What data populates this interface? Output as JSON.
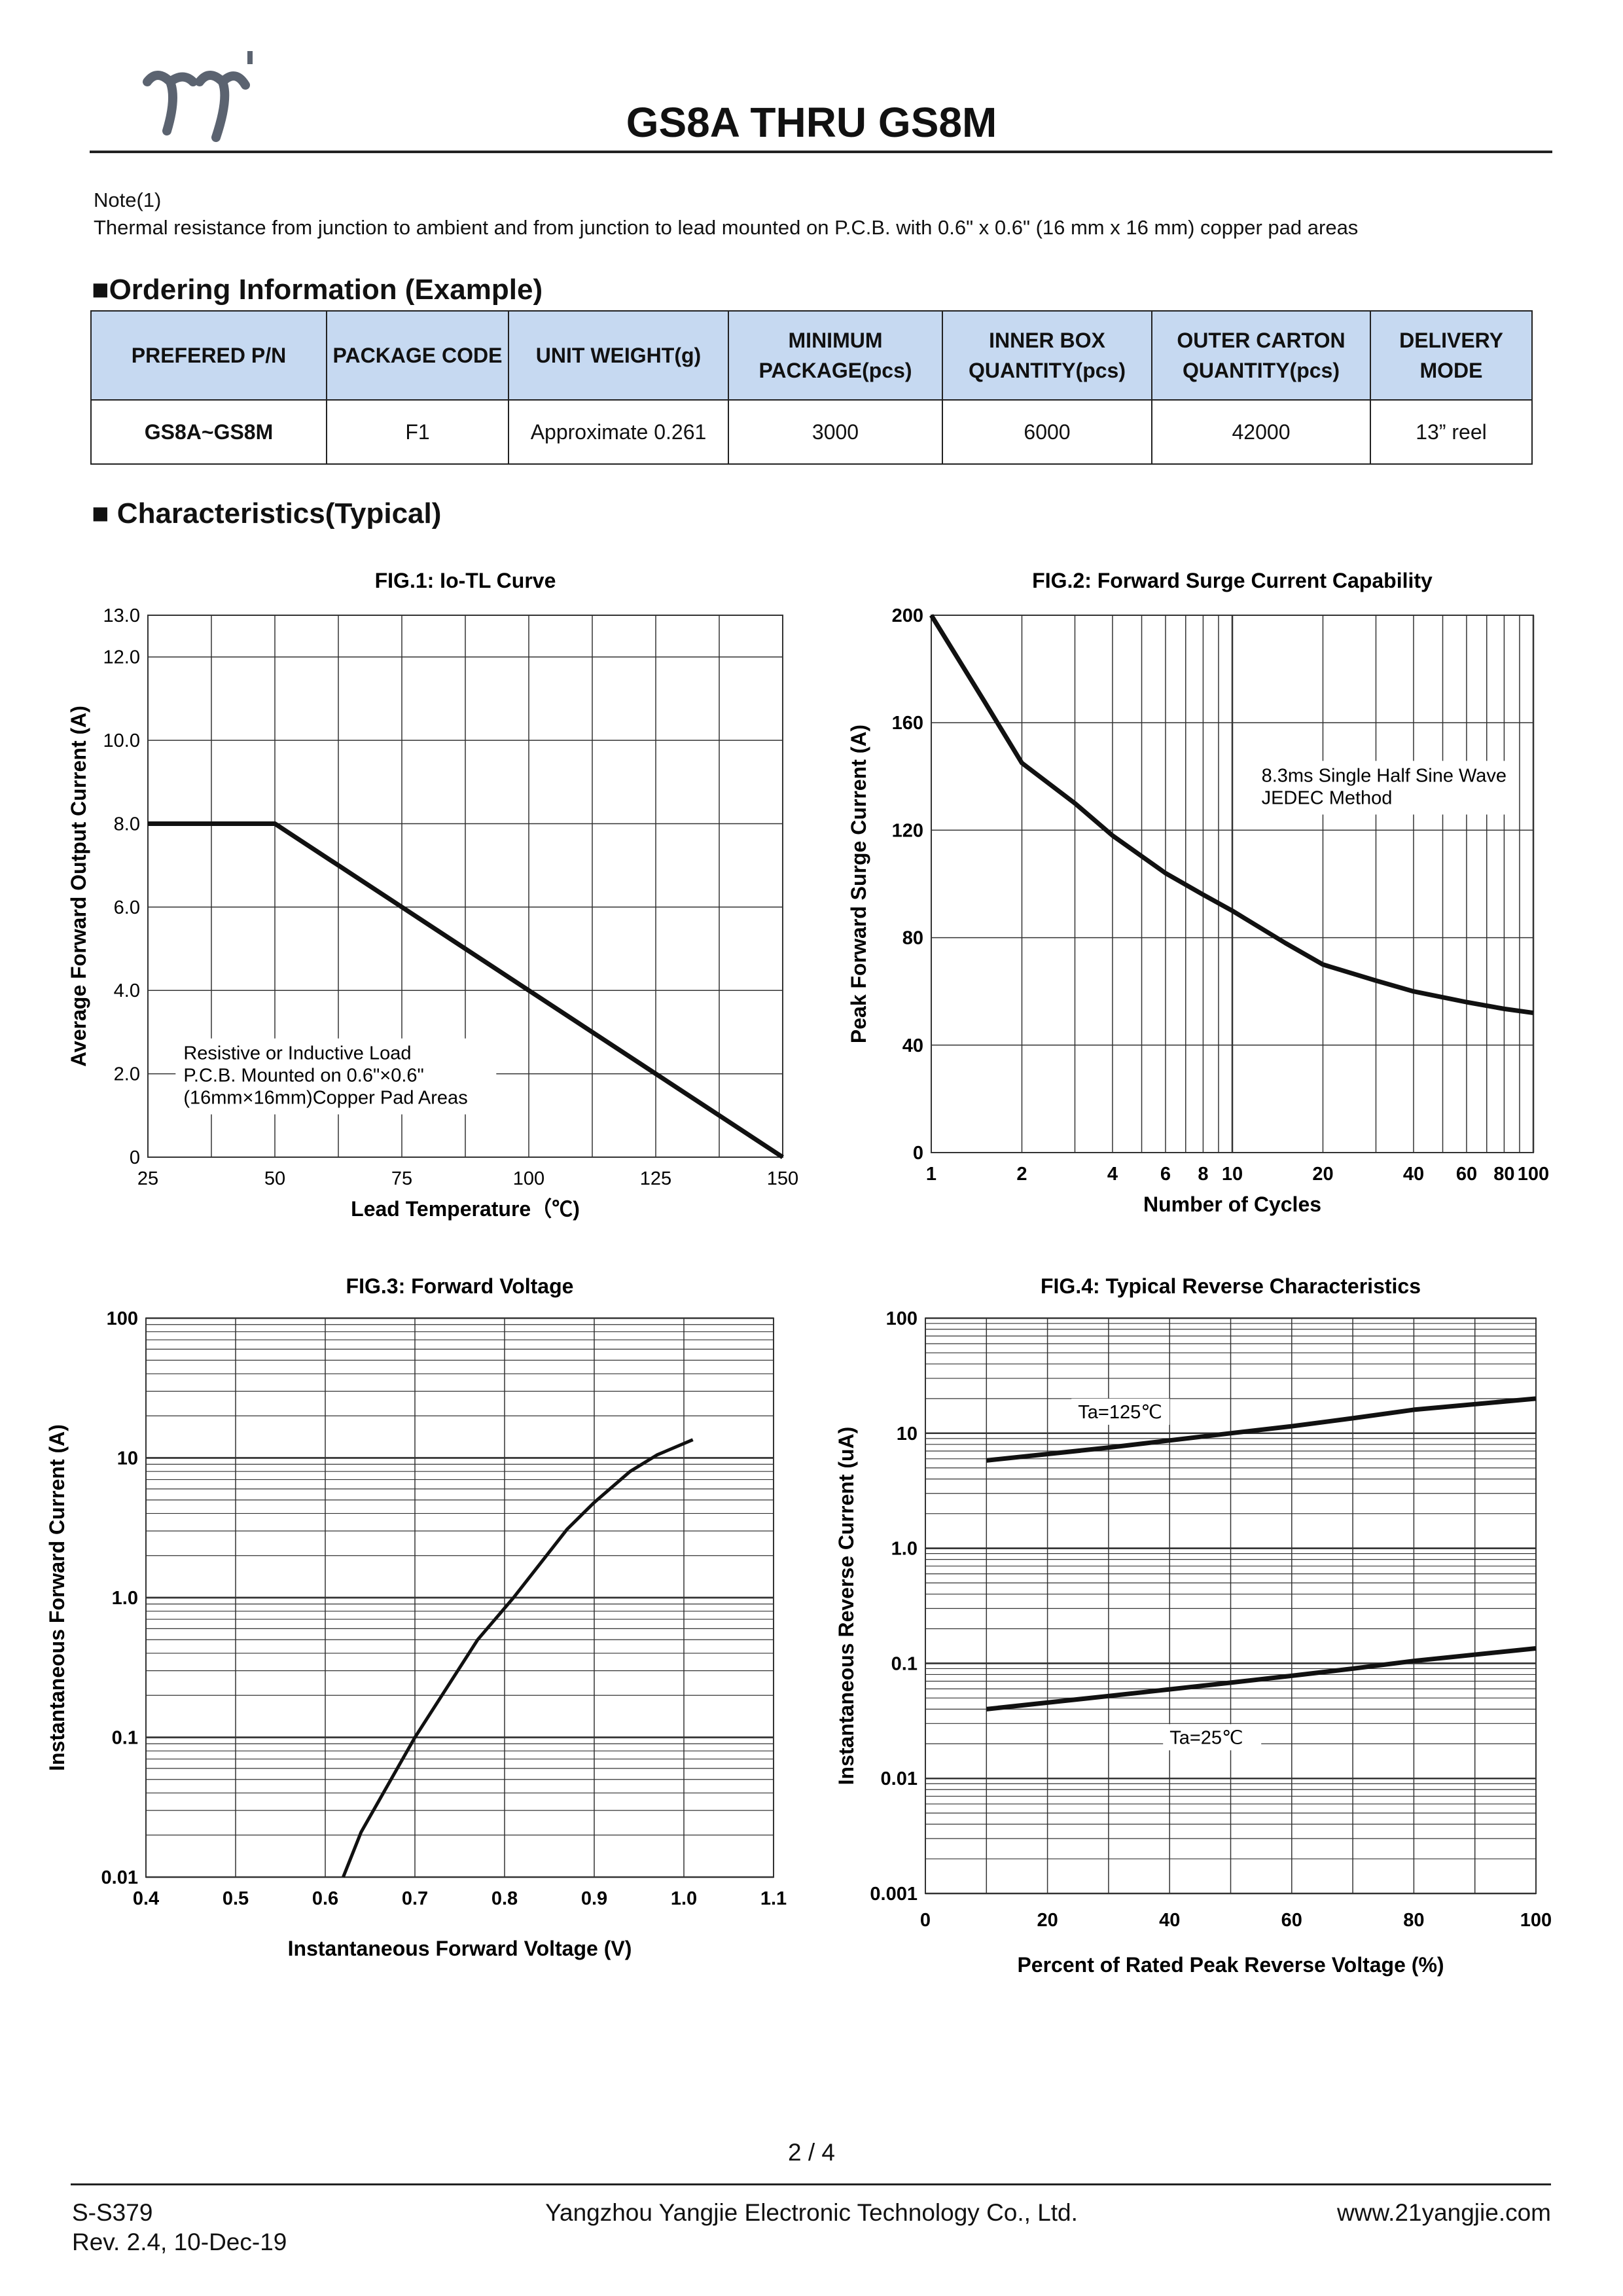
{
  "header": {
    "logo_text": "yj",
    "title": "GS8A THRU GS8M"
  },
  "note": {
    "label": "Note(1)",
    "text": "Thermal resistance from junction to ambient and from junction to lead mounted on P.C.B. with 0.6\" x 0.6\" (16 mm x 16 mm) copper pad areas"
  },
  "ordering": {
    "heading": "■Ordering Information (Example)",
    "columns": [
      "PREFERED P/N",
      "PACKAGE CODE",
      "UNIT WEIGHT(g)",
      "MINIMUM PACKAGE(pcs)",
      "INNER BOX QUANTITY(pcs)",
      "OUTER CARTON QUANTITY(pcs)",
      "DELIVERY MODE"
    ],
    "rows": [
      [
        "GS8A~GS8M",
        "F1",
        "Approximate 0.261",
        "3000",
        "6000",
        "42000",
        "13” reel"
      ]
    ]
  },
  "characteristics_heading": "■ Characteristics(Typical)",
  "chart_data": [
    {
      "type": "line",
      "title": "FIG.1: Io-TL Curve",
      "xlabel": "Lead Temperature（℃)",
      "ylabel": "Average Forward Output Current (A)",
      "xlim": [
        25,
        150
      ],
      "ylim": [
        0,
        13
      ],
      "x_ticks": [
        "25",
        "50",
        "75",
        "100",
        "125",
        "150"
      ],
      "y_ticks": [
        "0",
        "2.0",
        "4.0",
        "6.0",
        "8.0",
        "10.0",
        "12.0",
        "13.0"
      ],
      "grid": true,
      "annotation": [
        "Resistive or Inductive Load",
        "P.C.B. Mounted on 0.6\"×0.6\"",
        "(16mm×16mm)Copper Pad Areas"
      ],
      "x": [
        25,
        50,
        150
      ],
      "y": [
        8,
        8,
        0
      ]
    },
    {
      "type": "line",
      "title": "FIG.2: Forward Surge Current Capability",
      "xlabel": "Number of Cycles",
      "ylabel": "Peak Forward Surge Current (A)",
      "xscale": "log",
      "xlim": [
        1,
        100
      ],
      "ylim": [
        0,
        200
      ],
      "x_ticks": [
        "1",
        "2",
        "4",
        "6",
        "8",
        "10",
        "20",
        "40",
        "60",
        "80",
        "100"
      ],
      "y_ticks": [
        "0",
        "40",
        "80",
        "120",
        "160",
        "200"
      ],
      "grid": true,
      "annotation": [
        "8.3ms Single Half Sine Wave",
        "JEDEC Method"
      ],
      "x": [
        1,
        1.5,
        2,
        3,
        4,
        6,
        8,
        10,
        15,
        20,
        30,
        40,
        60,
        80,
        100
      ],
      "y": [
        200,
        168,
        145,
        130,
        118,
        104,
        96,
        90,
        78,
        70,
        64,
        60,
        56,
        53.5,
        52
      ]
    },
    {
      "type": "line",
      "title": "FIG.3: Forward  Voltage",
      "xlabel": "Instantaneous Forward Voltage (V)",
      "ylabel": "Instantaneous Forward Current (A)",
      "yscale": "log",
      "xlim": [
        0.4,
        1.1
      ],
      "ylim": [
        0.01,
        100
      ],
      "x_ticks": [
        "0.4",
        "0.5",
        "0.6",
        "0.7",
        "0.8",
        "0.9",
        "1.0",
        "1.1"
      ],
      "y_ticks": [
        "0.01",
        "0.1",
        "1.0",
        "10",
        "100"
      ],
      "grid": true,
      "x": [
        0.62,
        0.64,
        0.7,
        0.77,
        0.81,
        0.87,
        0.9,
        0.94,
        0.97,
        1.01
      ],
      "y": [
        0.01,
        0.021,
        0.1,
        0.5,
        1.0,
        3.1,
        4.8,
        8.0,
        10.5,
        13.5
      ]
    },
    {
      "type": "line",
      "title": "FIG.4: Typical Reverse Characteristics",
      "xlabel": "Percent of Rated Peak Reverse Voltage (%)",
      "ylabel": "Instantaneous Reverse Current (uA)",
      "yscale": "log",
      "xlim": [
        0,
        100
      ],
      "ylim": [
        0.001,
        100
      ],
      "x_ticks": [
        "0",
        "20",
        "40",
        "60",
        "80",
        "100"
      ],
      "y_ticks": [
        "0.001",
        "0.01",
        "0.1",
        "1.0",
        "10",
        "100"
      ],
      "grid": true,
      "series": [
        {
          "name": "Ta=125℃",
          "x": [
            10,
            30,
            50,
            60,
            70,
            80,
            100
          ],
          "y": [
            5.8,
            7.5,
            10,
            11.5,
            13.5,
            16,
            20
          ]
        },
        {
          "name": "Ta=25℃",
          "x": [
            10,
            30,
            50,
            60,
            70,
            80,
            100
          ],
          "y": [
            0.04,
            0.052,
            0.068,
            0.078,
            0.09,
            0.105,
            0.135
          ]
        }
      ]
    }
  ],
  "footer": {
    "page": "2 / 4",
    "doc_id": "S-S379",
    "revision": "Rev. 2.4, 10-Dec-19",
    "company": "Yangzhou Yangjie Electronic Technology Co., Ltd.",
    "website": "www.21yangjie.com"
  }
}
